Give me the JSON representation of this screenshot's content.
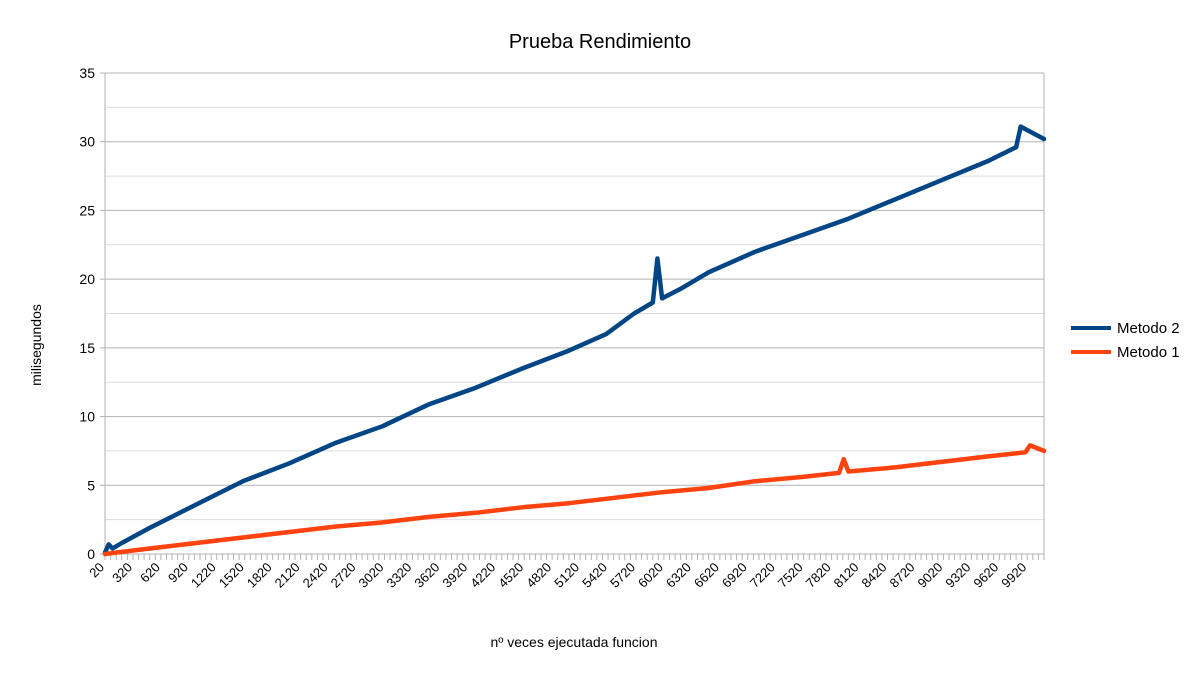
{
  "chart_data": {
    "type": "line",
    "title": "Prueba Rendimiento",
    "xlabel": "nº veces ejecutada funcion",
    "ylabel": "milisegundos",
    "xlim": [
      20,
      10100
    ],
    "ylim": [
      0,
      35
    ],
    "yticks": [
      0,
      5,
      10,
      15,
      20,
      25,
      30,
      35
    ],
    "xtick_labels": [
      "20",
      "320",
      "620",
      "920",
      "1220",
      "1520",
      "1820",
      "2120",
      "2420",
      "2720",
      "3020",
      "3320",
      "3620",
      "3920",
      "4220",
      "4520",
      "4820",
      "5120",
      "5420",
      "5720",
      "6020",
      "6320",
      "6620",
      "6920",
      "7220",
      "7520",
      "7820",
      "8120",
      "8420",
      "8720",
      "9020",
      "9320",
      "9620",
      "9920"
    ],
    "grid": true,
    "legend_position": "right",
    "series": [
      {
        "name": "Metodo 2",
        "color": "#004586",
        "x": [
          20,
          60,
          100,
          200,
          500,
          1000,
          1500,
          2000,
          2500,
          3000,
          3500,
          4000,
          4500,
          5000,
          5400,
          5700,
          5900,
          5950,
          6000,
          6200,
          6500,
          7000,
          7500,
          8000,
          8500,
          9000,
          9500,
          9800,
          9850,
          10100
        ],
        "y": [
          0.1,
          0.7,
          0.4,
          0.8,
          1.9,
          3.6,
          5.3,
          6.6,
          8.1,
          9.3,
          10.9,
          12.1,
          13.5,
          14.8,
          16.0,
          17.5,
          18.3,
          21.5,
          18.6,
          19.3,
          20.5,
          22.0,
          23.2,
          24.4,
          25.8,
          27.2,
          28.6,
          29.6,
          31.1,
          30.2
        ]
      },
      {
        "name": "Metodo 1",
        "color": "#ff420e",
        "x": [
          20,
          500,
          1000,
          1500,
          2000,
          2500,
          3000,
          3500,
          4000,
          4500,
          5000,
          5500,
          6000,
          6500,
          7000,
          7500,
          7900,
          7950,
          8000,
          8500,
          9000,
          9500,
          9900,
          9950,
          10100
        ],
        "y": [
          0.0,
          0.4,
          0.8,
          1.2,
          1.6,
          2.0,
          2.3,
          2.7,
          3.0,
          3.4,
          3.7,
          4.1,
          4.5,
          4.8,
          5.3,
          5.6,
          5.9,
          6.9,
          6.0,
          6.3,
          6.7,
          7.1,
          7.4,
          7.9,
          7.5
        ]
      }
    ]
  }
}
